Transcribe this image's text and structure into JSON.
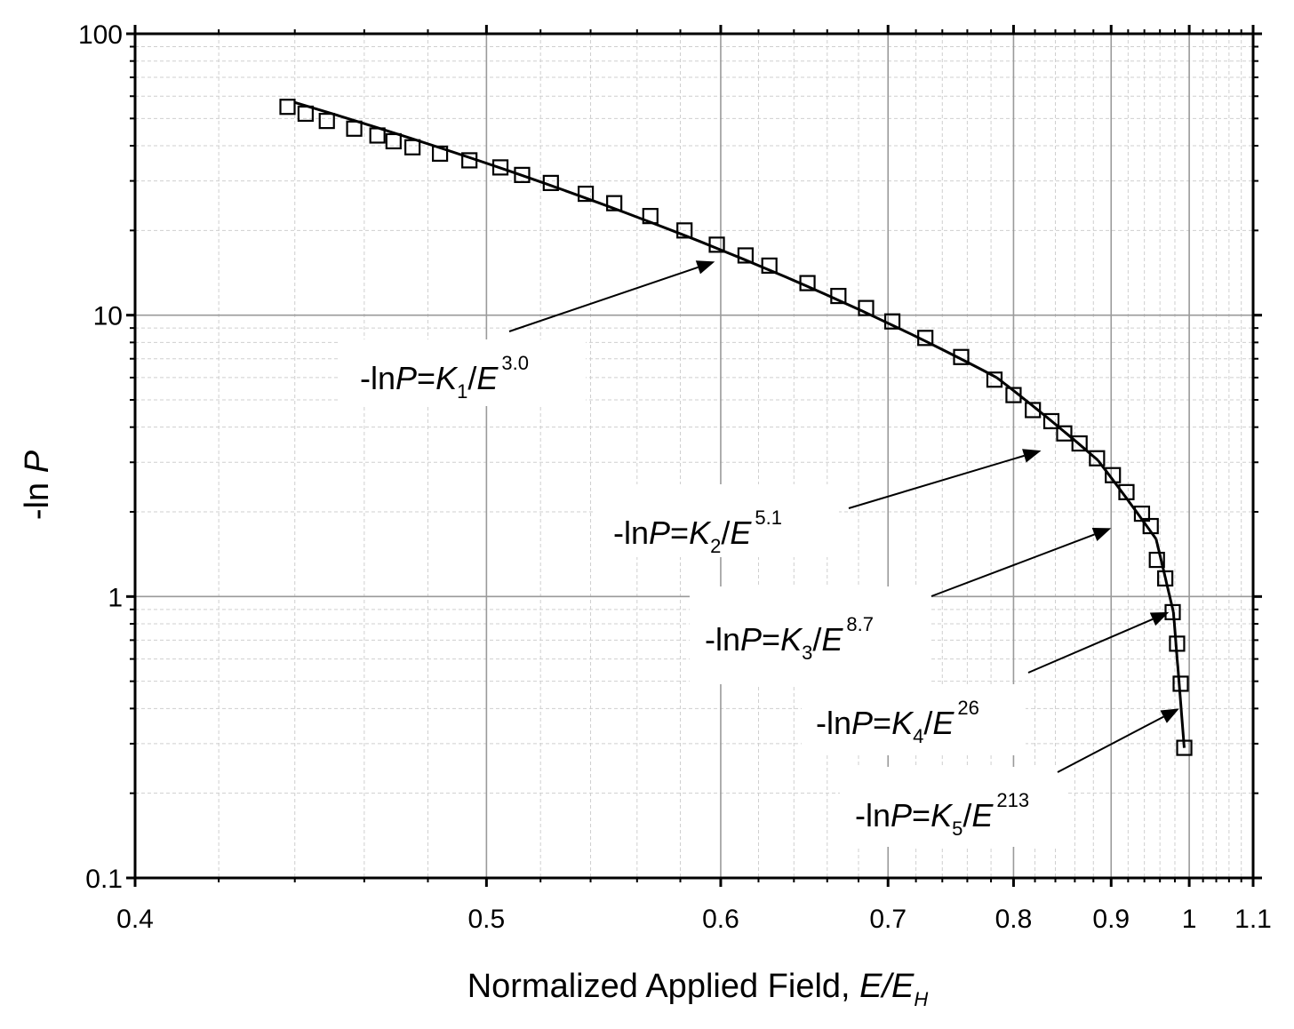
{
  "chart_data": {
    "type": "scatter",
    "title": "",
    "xlabel": {
      "text": "Normalized Applied Field, ",
      "italic": "E/E",
      "sub": "H"
    },
    "ylabel": {
      "text": "-ln ",
      "italic": "P"
    },
    "xlim": [
      0.4,
      1.1
    ],
    "ylim": [
      0.1,
      100
    ],
    "yscale": "log",
    "xscale": "reciprocal",
    "grid": true,
    "x_ticks": [
      "0.4",
      "0.5",
      "0.6",
      "0.7",
      "0.8",
      "0.9",
      "1",
      "1.1"
    ],
    "x_tick_values": [
      0.4,
      0.5,
      0.6,
      0.7,
      0.8,
      0.9,
      1.0,
      1.1
    ],
    "y_ticks": [
      "0.1",
      "1",
      "10",
      "100"
    ],
    "y_tick_values": [
      0.1,
      1,
      10,
      100
    ],
    "series": [
      {
        "marker": "square",
        "x": [
          0.438,
          0.443,
          0.449,
          0.457,
          0.464,
          0.469,
          0.475,
          0.484,
          0.494,
          0.505,
          0.513,
          0.524,
          0.538,
          0.55,
          0.566,
          0.582,
          0.598,
          0.613,
          0.626,
          0.648,
          0.667,
          0.685,
          0.703,
          0.727,
          0.755,
          0.783,
          0.8,
          0.818,
          0.836,
          0.849,
          0.865,
          0.884,
          0.902,
          0.918,
          0.937,
          0.948,
          0.956,
          0.967,
          0.977,
          0.983,
          0.988,
          0.993
        ],
        "y": [
          55,
          52,
          49,
          46,
          43.5,
          41.5,
          39.5,
          37.5,
          35.5,
          33.5,
          31.5,
          29.5,
          27,
          25,
          22.5,
          20,
          17.8,
          16.3,
          15,
          13,
          11.7,
          10.6,
          9.5,
          8.3,
          7.1,
          5.9,
          5.2,
          4.6,
          4.2,
          3.8,
          3.5,
          3.1,
          2.7,
          2.35,
          1.97,
          1.78,
          1.35,
          1.16,
          0.88,
          0.68,
          0.49,
          0.29
        ]
      }
    ],
    "fits": [
      {
        "x": [
          0.44,
          0.785
        ],
        "y": [
          57,
          6.0
        ]
      },
      {
        "x": [
          0.785,
          0.885
        ],
        "y": [
          6.0,
          3.05
        ]
      },
      {
        "x": [
          0.885,
          0.955
        ],
        "y": [
          3.05,
          1.6
        ]
      },
      {
        "x": [
          0.955,
          0.978
        ],
        "y": [
          1.6,
          0.88
        ]
      },
      {
        "x": [
          0.978,
          0.993
        ],
        "y": [
          0.88,
          0.29
        ]
      }
    ],
    "annotations": [
      {
        "text": "-ln",
        "italic_p": "P",
        "eq": "=",
        "k": "K",
        "sub": "1",
        "slash": "/",
        "e": "E",
        "sup": "3.0",
        "arrow_to": [
          0.597,
          15.5
        ]
      },
      {
        "text": "-ln",
        "italic_p": "P",
        "eq": "=",
        "k": "K",
        "sub": "2",
        "slash": "/",
        "e": "E",
        "sup": "5.1",
        "arrow_to": [
          0.826,
          3.3
        ]
      },
      {
        "text": "-ln",
        "italic_p": "P",
        "eq": "=",
        "k": "K",
        "sub": "3",
        "slash": "/",
        "e": "E",
        "sup": "8.7",
        "arrow_to": [
          0.9,
          1.75
        ]
      },
      {
        "text": "-ln",
        "italic_p": "P",
        "eq": "=",
        "k": "K",
        "sub": "4",
        "slash": "/",
        "e": "E",
        "sup": "26",
        "arrow_to": [
          0.972,
          0.88
        ]
      },
      {
        "text": "-ln",
        "italic_p": "P",
        "eq": "=",
        "k": "K",
        "sub": "5",
        "slash": "/",
        "e": "E",
        "sup": "213",
        "arrow_to": [
          0.986,
          0.4
        ]
      }
    ]
  }
}
